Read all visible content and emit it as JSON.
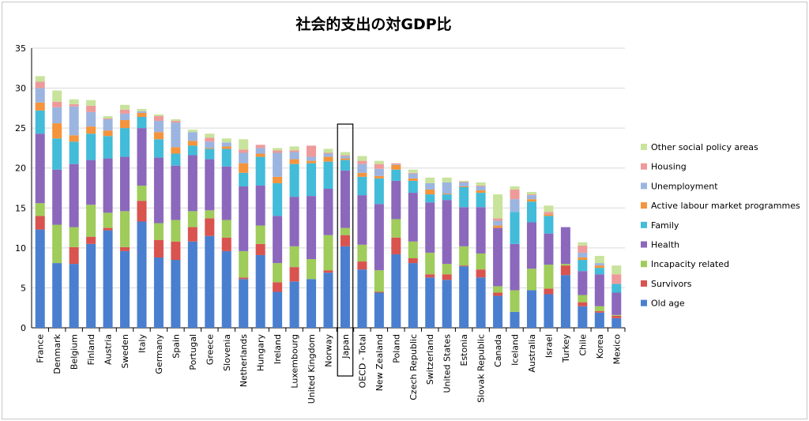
{
  "chart_data": {
    "type": "bar",
    "stacked": true,
    "title": "社会的支出の対GDP比",
    "xlabel": "",
    "ylabel": "",
    "ylim": [
      0,
      35
    ],
    "yticks": [
      0,
      5,
      10,
      15,
      20,
      25,
      30,
      35
    ],
    "grid": true,
    "legend_position": "right",
    "highlighted_category": "Japan",
    "categories": [
      "France",
      "Denmark",
      "Belgium",
      "Finland",
      "Austria",
      "Sweden",
      "Italy",
      "Germany",
      "Spain",
      "Portugal",
      "Greece",
      "Slovenia",
      "Netherlands",
      "Hungary",
      "Ireland",
      "Luxembourg",
      "United Kingdom",
      "Norway",
      "Japan",
      "OECD - Total",
      "New Zealand",
      "Poland",
      "Czech Republic",
      "Switzerland",
      "United States",
      "Estonia",
      "Slovak Republic",
      "Canada",
      "Iceland",
      "Australia",
      "Israel",
      "Turkey",
      "Chile",
      "Korea",
      "Mexico"
    ],
    "series": [
      {
        "name": "Old age",
        "color": "#4a7fd0",
        "values": [
          12.3,
          8.1,
          8.0,
          10.5,
          12.2,
          9.6,
          13.3,
          8.8,
          8.5,
          10.8,
          11.5,
          9.6,
          6.1,
          9.1,
          4.5,
          5.8,
          6.1,
          6.9,
          10.2,
          7.3,
          4.4,
          9.2,
          8.1,
          6.3,
          6.0,
          7.7,
          6.3,
          4.0,
          2.0,
          4.7,
          4.2,
          6.6,
          2.7,
          1.9,
          1.2
        ]
      },
      {
        "name": "Survivors",
        "color": "#d9534f",
        "values": [
          1.7,
          0.0,
          2.1,
          0.9,
          0.3,
          0.5,
          2.6,
          2.2,
          2.3,
          1.8,
          2.2,
          1.7,
          0.2,
          1.4,
          1.2,
          1.8,
          0.0,
          0.3,
          1.4,
          1.0,
          0.1,
          2.1,
          0.6,
          0.4,
          0.7,
          0.1,
          1.0,
          0.4,
          0.0,
          0.0,
          0.7,
          1.2,
          0.5,
          0.2,
          0.3
        ]
      },
      {
        "name": "Incapacity related",
        "color": "#9fcc5a",
        "values": [
          1.6,
          4.8,
          2.5,
          4.0,
          1.9,
          4.5,
          1.9,
          2.1,
          2.7,
          2.0,
          1.0,
          2.2,
          3.3,
          2.3,
          2.4,
          2.6,
          2.5,
          4.4,
          0.9,
          2.1,
          2.7,
          2.3,
          2.1,
          2.7,
          1.3,
          2.4,
          2.0,
          0.8,
          2.7,
          2.7,
          3.0,
          0.2,
          0.9,
          0.6,
          0.1
        ]
      },
      {
        "name": "Health",
        "color": "#8b68bc",
        "values": [
          8.7,
          6.9,
          7.9,
          5.6,
          6.8,
          6.8,
          7.2,
          8.2,
          6.8,
          7.0,
          6.4,
          6.7,
          8.1,
          5.0,
          5.9,
          6.2,
          7.9,
          5.8,
          7.2,
          6.2,
          8.3,
          4.8,
          6.1,
          6.3,
          8.0,
          4.9,
          5.8,
          7.3,
          5.8,
          5.8,
          3.9,
          4.6,
          3.0,
          4.0,
          2.8
        ]
      },
      {
        "name": "Family",
        "color": "#42bcd8",
        "values": [
          2.9,
          3.9,
          2.8,
          3.3,
          2.8,
          3.6,
          1.4,
          2.3,
          1.5,
          1.2,
          1.3,
          2.2,
          1.7,
          3.6,
          4.1,
          4.1,
          4.1,
          3.4,
          1.3,
          2.3,
          3.2,
          1.4,
          1.5,
          1.0,
          0.7,
          2.5,
          1.8,
          0.0,
          4.0,
          2.6,
          2.2,
          0.0,
          1.4,
          0.8,
          1.1
        ]
      },
      {
        "name": "Active labour market programmes",
        "color": "#f5943c",
        "values": [
          1.0,
          1.9,
          0.8,
          0.9,
          0.7,
          1.0,
          0.5,
          0.9,
          0.8,
          0.6,
          0.1,
          0.3,
          1.2,
          0.4,
          0.8,
          0.6,
          0.3,
          0.6,
          0.2,
          0.5,
          0.3,
          0.6,
          0.3,
          0.6,
          0.1,
          0.1,
          0.3,
          0.3,
          0.0,
          0.3,
          0.2,
          0.0,
          0.3,
          0.3,
          0.0
        ]
      },
      {
        "name": "Unemployment",
        "color": "#9bb5e0",
        "values": [
          1.8,
          2.0,
          3.6,
          1.8,
          1.4,
          0.8,
          0.2,
          1.4,
          3.1,
          1.1,
          0.8,
          0.5,
          1.3,
          0.7,
          3.0,
          0.9,
          0.5,
          0.4,
          0.3,
          1.1,
          0.9,
          0.1,
          0.6,
          0.8,
          1.4,
          0.5,
          0.5,
          0.6,
          1.6,
          0.5,
          0.0,
          0.0,
          0.6,
          0.3,
          0.0
        ]
      },
      {
        "name": "Housing",
        "color": "#ee9a9a",
        "values": [
          0.8,
          0.7,
          0.3,
          0.8,
          0.1,
          0.5,
          0.0,
          0.6,
          0.2,
          0.0,
          0.5,
          0.0,
          0.4,
          0.4,
          0.3,
          0.2,
          1.4,
          0.1,
          0.1,
          0.4,
          0.6,
          0.1,
          0.1,
          0.0,
          0.0,
          0.1,
          0.1,
          0.3,
          1.2,
          0.1,
          0.3,
          0.0,
          0.9,
          0.0,
          1.2
        ]
      },
      {
        "name": "Other social policy areas",
        "color": "#c8e39c",
        "values": [
          0.7,
          1.4,
          0.6,
          0.7,
          0.3,
          0.6,
          0.3,
          0.2,
          0.2,
          0.3,
          0.5,
          0.5,
          1.3,
          0.0,
          0.3,
          0.5,
          0.0,
          0.5,
          0.4,
          0.6,
          0.4,
          0.0,
          0.4,
          0.7,
          0.6,
          0.1,
          0.4,
          3.0,
          0.4,
          0.3,
          0.8,
          0.0,
          0.4,
          0.9,
          1.1
        ]
      }
    ]
  }
}
